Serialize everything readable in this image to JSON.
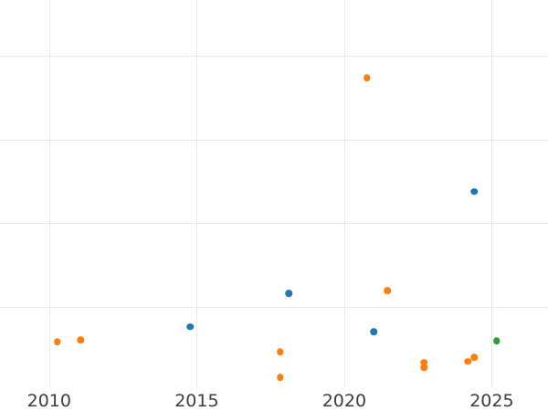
{
  "chart_data": {
    "type": "scatter",
    "title": "",
    "xlabel": "",
    "ylabel": "",
    "x_tick_labels": [
      "2010",
      "2015",
      "2020",
      "2025"
    ],
    "x_ticks": [
      2010,
      2015,
      2020,
      2025
    ],
    "y_gridlines": [
      1,
      2,
      3,
      4
    ],
    "y_tick_labels_visible": false,
    "y_units_note": "y-axis labels are cropped out of the screenshot; y values are expressed in horizontal-gridline units above the plot bottom",
    "axes": {
      "x_min": 2008.334,
      "x_max": 2026.906,
      "y_min": 0,
      "y_max": 4.672,
      "grid": true,
      "spines": false
    },
    "legend": null,
    "marker_diameter_px": 7.5,
    "series": [
      {
        "name": "series-blue",
        "color": "#1f77b4",
        "points": [
          {
            "x": 2014.78,
            "y": 0.76
          },
          {
            "x": 2018.12,
            "y": 1.16
          },
          {
            "x": 2021.0,
            "y": 0.7
          },
          {
            "x": 2024.4,
            "y": 2.38
          }
        ]
      },
      {
        "name": "series-orange",
        "color": "#ff7f0e",
        "points": [
          {
            "x": 2010.28,
            "y": 0.58
          },
          {
            "x": 2011.06,
            "y": 0.6
          },
          {
            "x": 2017.83,
            "y": 0.46
          },
          {
            "x": 2017.83,
            "y": 0.15
          },
          {
            "x": 2020.77,
            "y": 3.74
          },
          {
            "x": 2021.46,
            "y": 1.19
          },
          {
            "x": 2022.7,
            "y": 0.33
          },
          {
            "x": 2022.7,
            "y": 0.27
          },
          {
            "x": 2024.19,
            "y": 0.34
          },
          {
            "x": 2024.4,
            "y": 0.39
          }
        ]
      },
      {
        "name": "series-green",
        "color": "#2ca02c",
        "points": [
          {
            "x": 2025.17,
            "y": 0.59
          }
        ]
      }
    ],
    "colors": {
      "background": "#ffffff",
      "gridline": "#e8e8e8",
      "tick_label": "#3d3d3d"
    }
  }
}
